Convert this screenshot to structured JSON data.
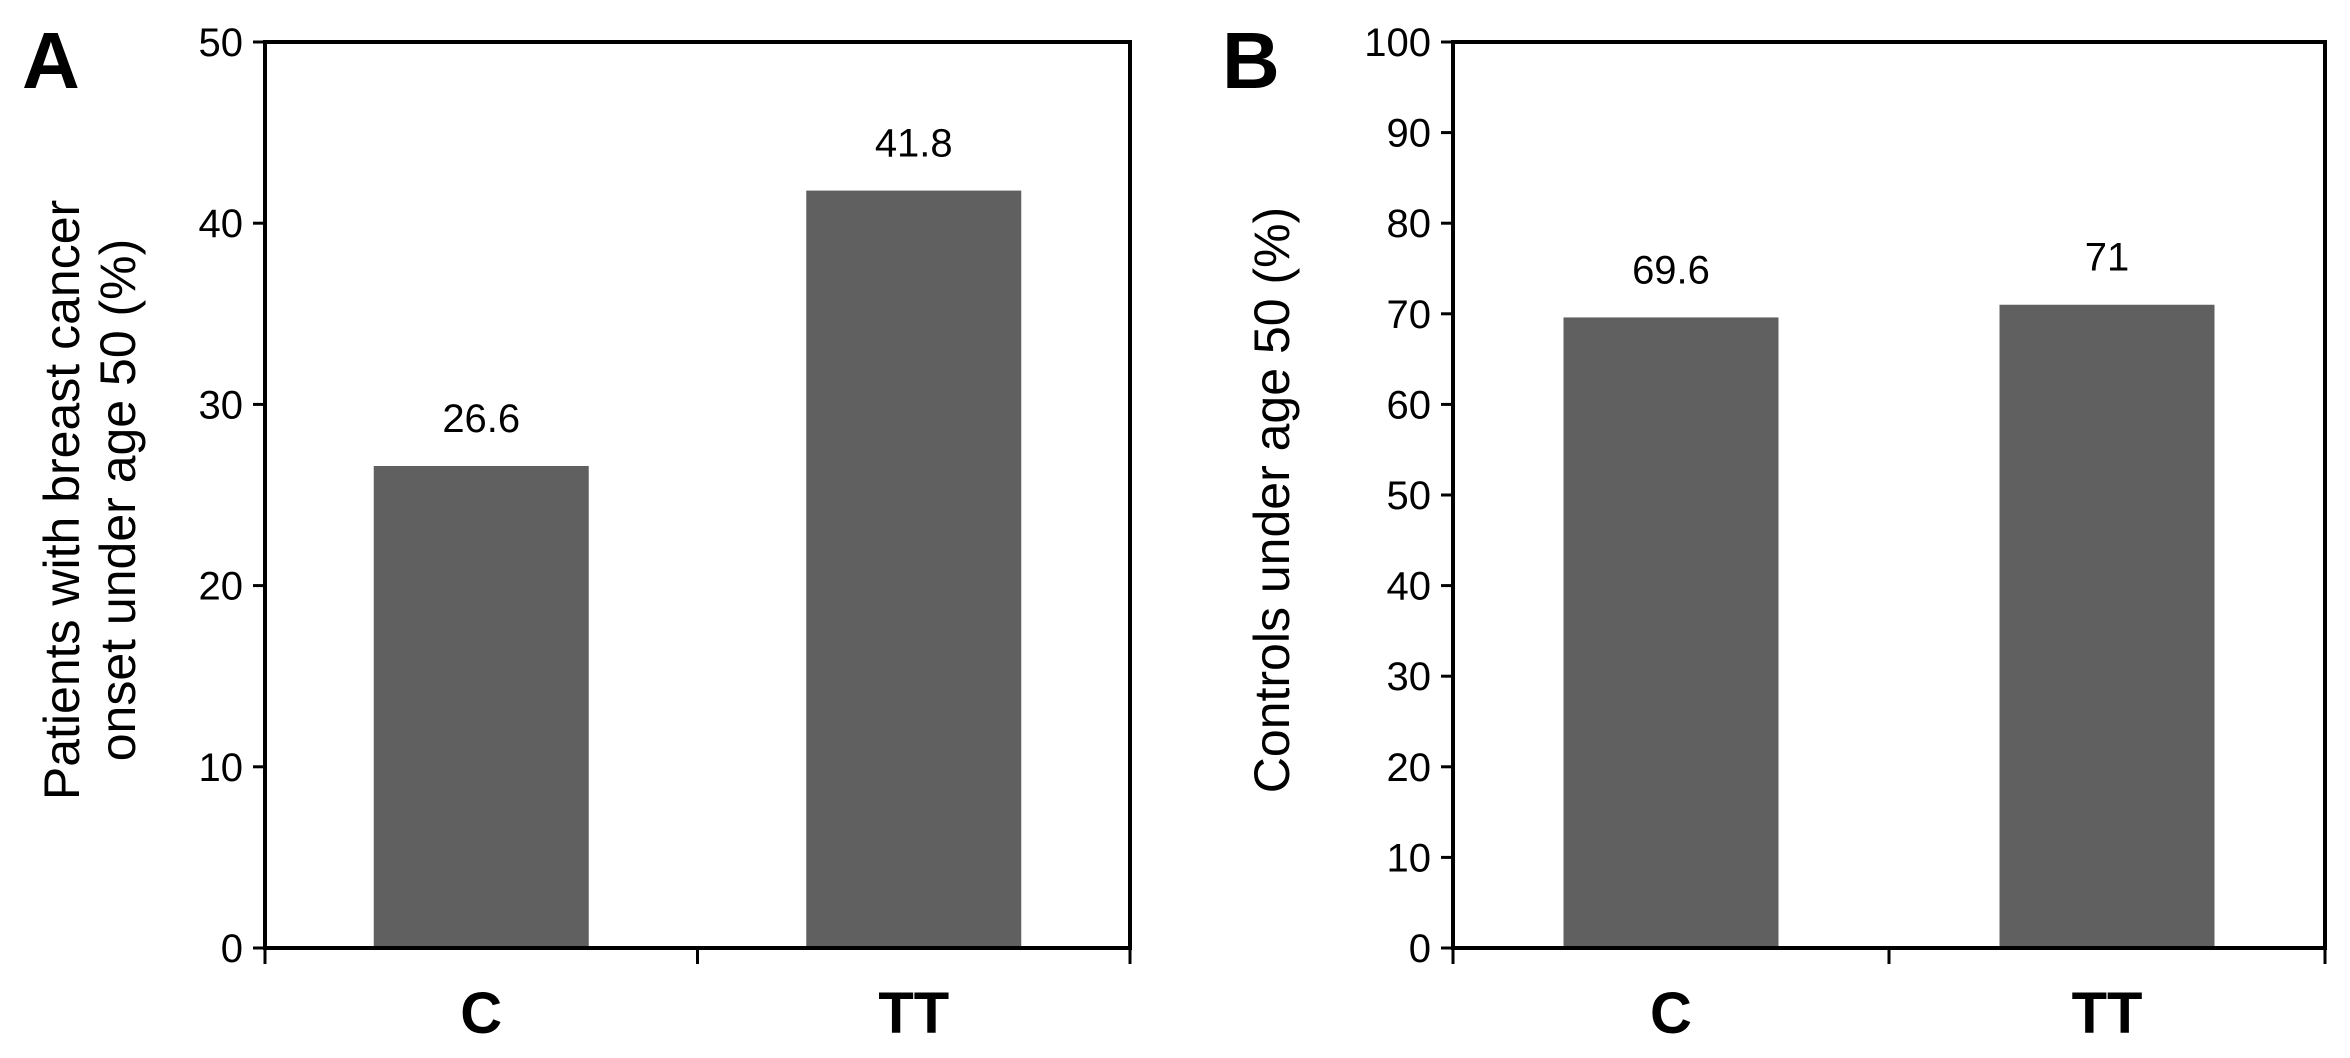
{
  "chart_data": [
    {
      "type": "bar",
      "panel_label": "A",
      "title": "",
      "xlabel": "",
      "ylabel_lines": [
        "Patients with breast cancer",
        "onset under age 50 (%)"
      ],
      "categories": [
        "C",
        "TT"
      ],
      "values": [
        26.6,
        41.8
      ],
      "data_labels": [
        "26.6",
        "41.8"
      ],
      "ylim": [
        0,
        50
      ],
      "yticks": [
        0,
        10,
        20,
        30,
        40,
        50
      ],
      "bar_color": "#606060",
      "grid": false,
      "legend": "none"
    },
    {
      "type": "bar",
      "panel_label": "B",
      "title": "",
      "xlabel": "",
      "ylabel_lines": [
        "Controls under age 50 (%)"
      ],
      "categories": [
        "C",
        "TT"
      ],
      "values": [
        69.6,
        71
      ],
      "data_labels": [
        "69.6",
        "71"
      ],
      "ylim": [
        0,
        100
      ],
      "yticks": [
        0,
        10,
        20,
        30,
        40,
        50,
        60,
        70,
        80,
        90,
        100
      ],
      "bar_color": "#606060",
      "grid": false,
      "legend": "none"
    }
  ]
}
